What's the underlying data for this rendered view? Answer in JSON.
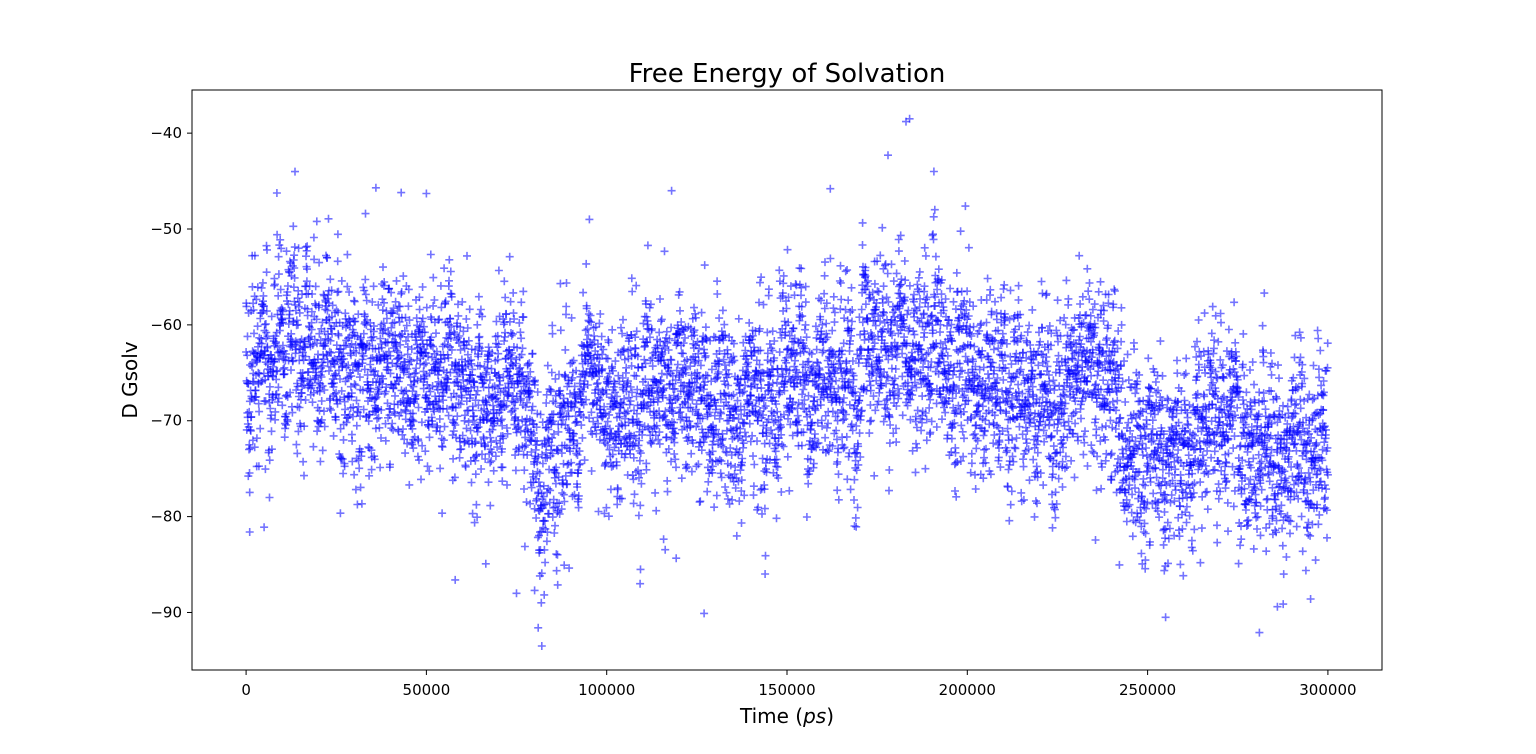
{
  "chart_data": {
    "type": "scatter",
    "title": "Free Energy of Solvation",
    "xlabel": "Time",
    "xlabel_unit": "ps",
    "ylabel": "D Gsolv",
    "xlim": [
      -15000,
      315000
    ],
    "ylim": [
      -96,
      -35.5
    ],
    "xticks": [
      0,
      50000,
      100000,
      150000,
      200000,
      250000,
      300000
    ],
    "yticks": [
      -90,
      -80,
      -70,
      -60,
      -50,
      -40
    ],
    "marker": "+",
    "color": "#0000ff",
    "alpha": 0.55,
    "grid": false,
    "legend": "none",
    "series": [
      {
        "x_range": [
          0,
          300000
        ],
        "n_points": 6000,
        "trend_x": [
          0,
          20000,
          40000,
          60000,
          75000,
          82000,
          95000,
          120000,
          150000,
          170000,
          183000,
          195000,
          220000,
          235000,
          245000,
          255000,
          270000,
          285000,
          300000
        ],
        "trend_y": [
          -63,
          -64,
          -65,
          -67,
          -68,
          -74,
          -70,
          -68,
          -67,
          -65,
          -61,
          -65,
          -67,
          -64,
          -72,
          -75,
          -71,
          -74,
          -73
        ],
        "spread_sd": 5.2,
        "notable_points": [
          {
            "x": 184000,
            "y": -38.5
          },
          {
            "x": 183000,
            "y": -38.8
          },
          {
            "x": 178000,
            "y": -42.3
          },
          {
            "x": 36000,
            "y": -45.7
          },
          {
            "x": 43000,
            "y": -46.2
          },
          {
            "x": 50000,
            "y": -46.3
          },
          {
            "x": 118000,
            "y": -46.0
          },
          {
            "x": 162000,
            "y": -45.8
          },
          {
            "x": 82000,
            "y": -93.5
          },
          {
            "x": 81000,
            "y": -91.6
          },
          {
            "x": 281000,
            "y": -92.1
          },
          {
            "x": 127000,
            "y": -90.1
          },
          {
            "x": 255000,
            "y": -90.5
          },
          {
            "x": 286000,
            "y": -89.4
          },
          {
            "x": 75000,
            "y": -88.0
          },
          {
            "x": 80000,
            "y": -87.7
          },
          {
            "x": 58000,
            "y": -86.6
          },
          {
            "x": 1000,
            "y": -81.6
          },
          {
            "x": 5000,
            "y": -81.1
          }
        ]
      }
    ]
  }
}
